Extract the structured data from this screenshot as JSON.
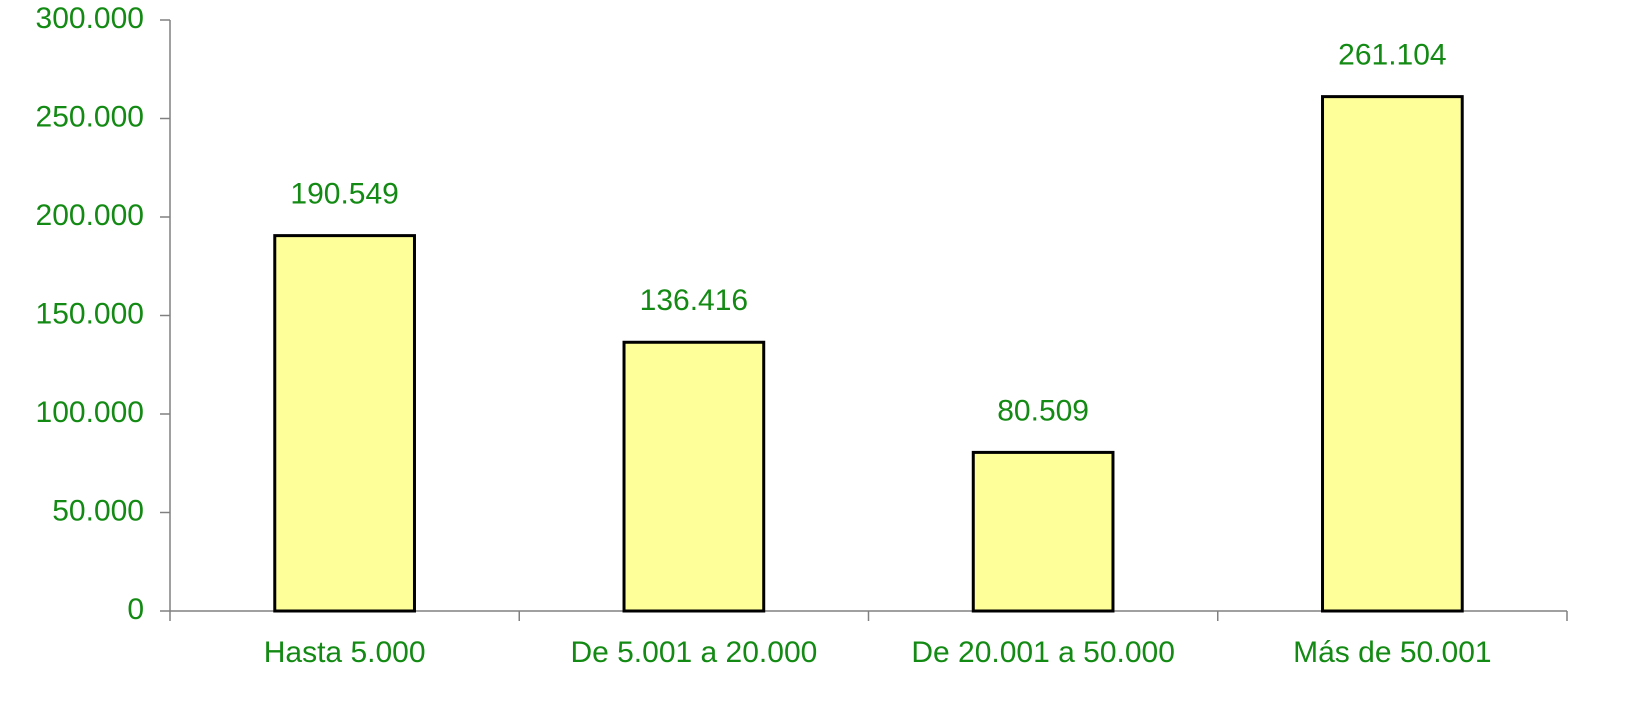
{
  "chart_data": {
    "type": "bar",
    "categories": [
      "Hasta 5.000",
      "De 5.001 a 20.000",
      "De 20.001 a 50.000",
      "Más de 50.001"
    ],
    "values": [
      190549,
      136416,
      80509,
      261104
    ],
    "value_labels": [
      "190.549",
      "136.416",
      "80.509",
      "261.104"
    ],
    "color": "#ffff99",
    "ylim": [
      0,
      300000
    ],
    "yticks": [
      0,
      {
        "value": 50000,
        "label": "50.000"
      },
      {
        "value": 100000,
        "label": "100.000"
      },
      {
        "value": 150000,
        "label": "150.000"
      },
      {
        "value": 200000,
        "label": "200.000"
      },
      {
        "value": 250000,
        "label": "250.000"
      },
      {
        "value": 300000,
        "label": "300.000"
      }
    ],
    "grid": false
  }
}
